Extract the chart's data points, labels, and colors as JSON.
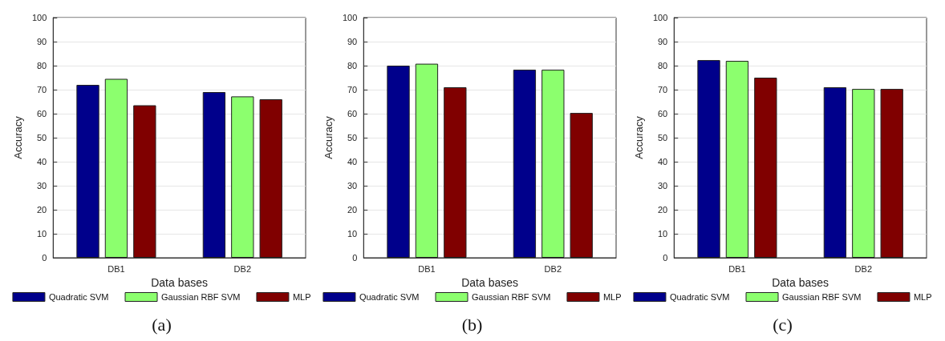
{
  "chart_data": [
    {
      "type": "bar",
      "xlabel": "Data bases",
      "ylabel": "Accuracy",
      "categories": [
        "DB1",
        "DB2"
      ],
      "ylim": [
        0,
        100
      ],
      "yticks": [
        0,
        10,
        20,
        30,
        40,
        50,
        60,
        70,
        80,
        90,
        100
      ],
      "grid": "y",
      "legend": "bottom",
      "annotations": [
        "(a)"
      ],
      "series": [
        {
          "name": "Quadratic SVM",
          "color": "#00008b",
          "values": [
            72,
            69
          ]
        },
        {
          "name": "Gaussian RBF SVM",
          "color": "#8cff6e",
          "values": [
            74.5,
            67.2
          ]
        },
        {
          "name": "MLP",
          "color": "#800000",
          "values": [
            63.5,
            66
          ]
        }
      ]
    },
    {
      "type": "bar",
      "xlabel": "Data bases",
      "ylabel": "Accuracy",
      "categories": [
        "DB1",
        "DB2"
      ],
      "ylim": [
        0,
        100
      ],
      "yticks": [
        0,
        10,
        20,
        30,
        40,
        50,
        60,
        70,
        80,
        90,
        100
      ],
      "grid": "y",
      "legend": "bottom",
      "annotations": [
        "(b)"
      ],
      "series": [
        {
          "name": "Quadratic SVM",
          "color": "#00008b",
          "values": [
            80,
            78.3
          ]
        },
        {
          "name": "Gaussian RBF SVM",
          "color": "#8cff6e",
          "values": [
            80.8,
            78.3
          ]
        },
        {
          "name": "MLP",
          "color": "#800000",
          "values": [
            71,
            60.3
          ]
        }
      ]
    },
    {
      "type": "bar",
      "xlabel": "Data bases",
      "ylabel": "Accuracy",
      "categories": [
        "DB1",
        "DB2"
      ],
      "ylim": [
        0,
        100
      ],
      "yticks": [
        0,
        10,
        20,
        30,
        40,
        50,
        60,
        70,
        80,
        90,
        100
      ],
      "grid": "y",
      "legend": "bottom",
      "annotations": [
        "(c)"
      ],
      "series": [
        {
          "name": "Quadratic SVM",
          "color": "#00008b",
          "values": [
            82.3,
            71
          ]
        },
        {
          "name": "Gaussian RBF SVM",
          "color": "#8cff6e",
          "values": [
            82,
            70.3
          ]
        },
        {
          "name": "MLP",
          "color": "#800000",
          "values": [
            75,
            70.3
          ]
        }
      ]
    }
  ]
}
